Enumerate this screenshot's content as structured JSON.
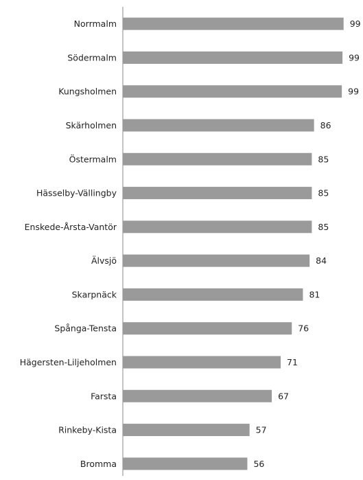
{
  "chart_data": {
    "type": "barh",
    "color": "#9a9a9a",
    "categories": [
      "Norrmalm",
      "Södermalm",
      "Kungsholmen",
      "Skärholmen",
      "Östermalm",
      "Hässelby-Vällingby",
      "Enskede-Årsta-Vantör",
      "Älvsjö",
      "Skarpnäck",
      "Spånga-Tensta",
      "Hägersten-Liljeholmen",
      "Farsta",
      "Rinkeby-Kista",
      "Bromma"
    ],
    "values": [
      99.3,
      98.8,
      98.5,
      86,
      85,
      85,
      85,
      84,
      81,
      76,
      71,
      67,
      57,
      56
    ],
    "value_labels": [
      "99",
      "99",
      "99",
      "86",
      "85",
      "85",
      "85",
      "84",
      "81",
      "76",
      "71",
      "67",
      "57",
      "56"
    ],
    "xlim": [
      0,
      100
    ]
  }
}
